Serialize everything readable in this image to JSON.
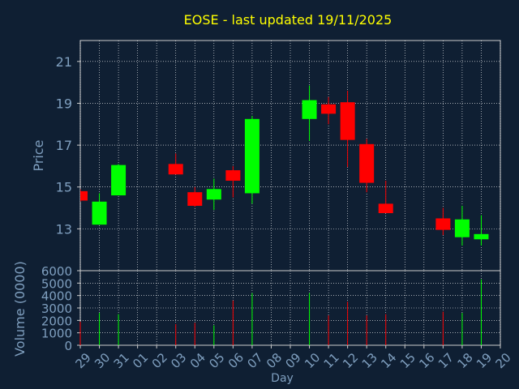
{
  "chart_data": [
    {
      "type": "candlestick",
      "title": "EOSE - last updated 19/11/2025",
      "ylabel": "Price",
      "ylim": [
        11.0,
        22.0
      ],
      "yticks": [
        13,
        15,
        17,
        19,
        21
      ],
      "grid": true,
      "x": [
        "29",
        "30",
        "31",
        "01",
        "02",
        "03",
        "04",
        "05",
        "06",
        "07",
        "08",
        "09",
        "10",
        "11",
        "12",
        "13",
        "14",
        "15",
        "16",
        "17",
        "18",
        "19",
        "20"
      ],
      "candles": [
        {
          "day": "29",
          "open": 14.8,
          "high": 14.9,
          "low": 14.3,
          "close": 14.35
        },
        {
          "day": "30",
          "open": 13.2,
          "high": 14.7,
          "low": 13.2,
          "close": 14.3
        },
        {
          "day": "31",
          "open": 14.6,
          "high": 16.1,
          "low": 14.6,
          "close": 16.05
        },
        {
          "day": "03",
          "open": 16.1,
          "high": 16.6,
          "low": 15.6,
          "close": 15.6
        },
        {
          "day": "04",
          "open": 14.75,
          "high": 15.0,
          "low": 14.05,
          "close": 14.1
        },
        {
          "day": "05",
          "open": 14.4,
          "high": 15.4,
          "low": 13.9,
          "close": 14.9
        },
        {
          "day": "06",
          "open": 15.8,
          "high": 16.0,
          "low": 14.5,
          "close": 15.3
        },
        {
          "day": "07",
          "open": 14.7,
          "high": 18.4,
          "low": 14.2,
          "close": 18.25
        },
        {
          "day": "10",
          "open": 18.25,
          "high": 19.85,
          "low": 17.2,
          "close": 19.15
        },
        {
          "day": "11",
          "open": 18.95,
          "high": 19.3,
          "low": 18.0,
          "close": 18.5
        },
        {
          "day": "12",
          "open": 19.05,
          "high": 19.6,
          "low": 15.95,
          "close": 17.25
        },
        {
          "day": "13",
          "open": 17.05,
          "high": 17.3,
          "low": 14.75,
          "close": 15.2
        },
        {
          "day": "14",
          "open": 14.2,
          "high": 15.3,
          "low": 13.75,
          "close": 13.75
        },
        {
          "day": "17",
          "open": 13.5,
          "high": 14.0,
          "low": 12.7,
          "close": 12.95
        },
        {
          "day": "18",
          "open": 12.6,
          "high": 14.1,
          "low": 12.2,
          "close": 13.45
        },
        {
          "day": "19",
          "open": 12.5,
          "high": 13.65,
          "low": 12.2,
          "close": 12.75
        }
      ],
      "colors": {
        "up": "#00ff00",
        "down": "#ff0000"
      }
    },
    {
      "type": "bar",
      "xlabel": "Day",
      "ylabel": "Volume (0000)",
      "ylim": [
        0,
        6000
      ],
      "yticks": [
        0,
        1000,
        2000,
        3000,
        4000,
        5000,
        6000
      ],
      "grid": true,
      "x": [
        "29",
        "30",
        "31",
        "01",
        "02",
        "03",
        "04",
        "05",
        "06",
        "07",
        "08",
        "09",
        "10",
        "11",
        "12",
        "13",
        "14",
        "15",
        "16",
        "17",
        "18",
        "19",
        "20"
      ],
      "bars": [
        {
          "day": "29",
          "value": 1900,
          "direction": "down"
        },
        {
          "day": "30",
          "value": 2600,
          "direction": "up"
        },
        {
          "day": "31",
          "value": 2500,
          "direction": "up"
        },
        {
          "day": "03",
          "value": 1700,
          "direction": "down"
        },
        {
          "day": "04",
          "value": 1800,
          "direction": "down"
        },
        {
          "day": "05",
          "value": 1600,
          "direction": "up"
        },
        {
          "day": "06",
          "value": 3600,
          "direction": "down"
        },
        {
          "day": "07",
          "value": 4200,
          "direction": "up"
        },
        {
          "day": "10",
          "value": 4200,
          "direction": "up"
        },
        {
          "day": "11",
          "value": 2400,
          "direction": "down"
        },
        {
          "day": "12",
          "value": 3500,
          "direction": "down"
        },
        {
          "day": "13",
          "value": 2400,
          "direction": "down"
        },
        {
          "day": "14",
          "value": 2500,
          "direction": "down"
        },
        {
          "day": "17",
          "value": 2700,
          "direction": "down"
        },
        {
          "day": "18",
          "value": 2600,
          "direction": "up"
        },
        {
          "day": "19",
          "value": 5300,
          "direction": "up"
        }
      ]
    }
  ],
  "colors": {
    "background": "#0f1f33",
    "title": "#ffff00",
    "labels": "#7f9fbf",
    "axis": "#cccccc",
    "grid": "#ffffff"
  }
}
